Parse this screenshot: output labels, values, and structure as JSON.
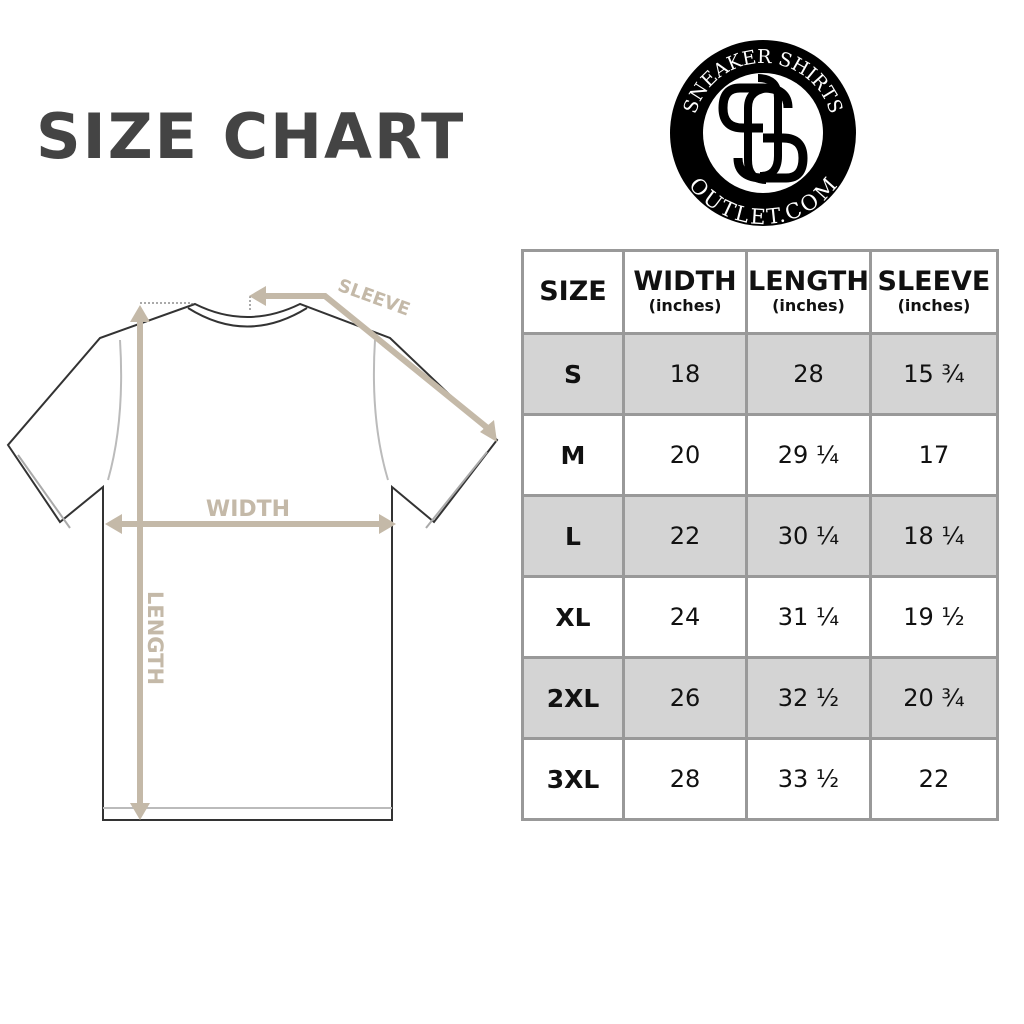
{
  "title": "SIZE CHART",
  "logo": {
    "top_text": "SNEAKER SHIRTS",
    "bottom_text": "OUTLET.COM",
    "monogram": "SS"
  },
  "diagram": {
    "width_label": "WIDTH",
    "length_label": "LENGTH",
    "sleeve_label": "SLEEVE",
    "accent_color": "#c4b9a8"
  },
  "table": {
    "headers": [
      {
        "main": "SIZE",
        "sub": ""
      },
      {
        "main": "WIDTH",
        "sub": "(inches)"
      },
      {
        "main": "LENGTH",
        "sub": "(inches)"
      },
      {
        "main": "SLEEVE",
        "sub": "(inches)"
      }
    ],
    "rows": [
      [
        "S",
        "18",
        "28",
        "15 ¾"
      ],
      [
        "M",
        "20",
        "29 ¼",
        "17"
      ],
      [
        "L",
        "22",
        "30 ¼",
        "18 ¼"
      ],
      [
        "XL",
        "24",
        "31 ¼",
        "19 ½"
      ],
      [
        "2XL",
        "26",
        "32 ½",
        "20 ¾"
      ],
      [
        "3XL",
        "28",
        "33 ½",
        "22"
      ]
    ],
    "shade_color": "#d4d4d4",
    "border_color": "#999999"
  }
}
